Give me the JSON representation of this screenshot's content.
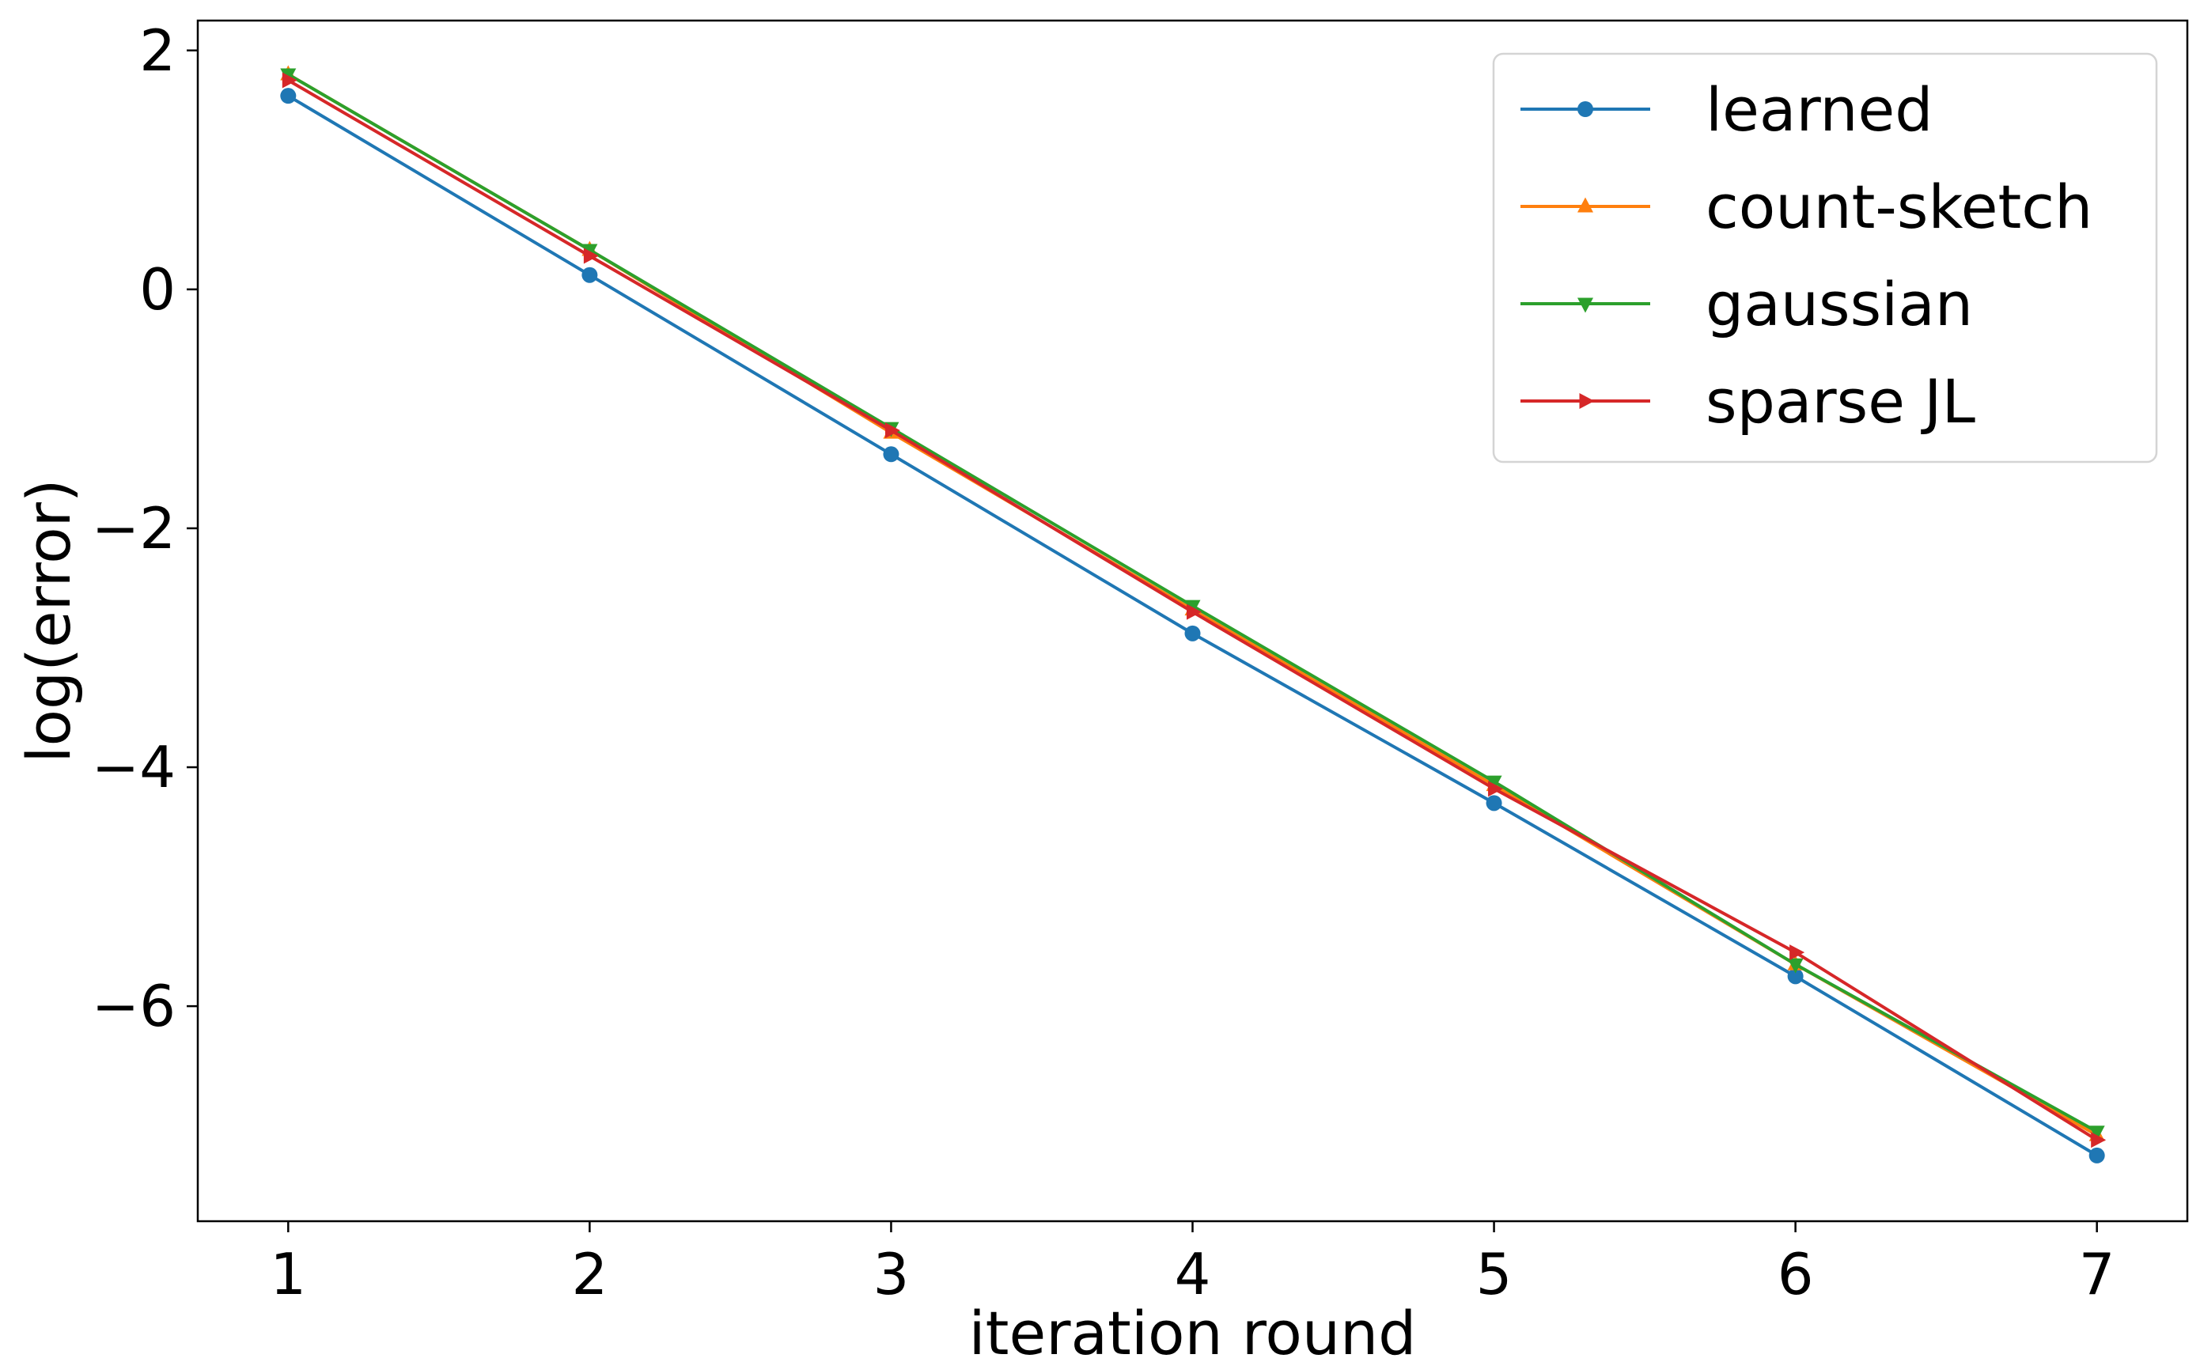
{
  "chart_data": {
    "type": "line",
    "xlabel": "iteration round",
    "ylabel": "log(error)",
    "xlim": [
      0.7,
      7.3
    ],
    "ylim": [
      -7.8,
      2.25
    ],
    "xticks": [
      1,
      2,
      3,
      4,
      5,
      6,
      7
    ],
    "yticks": [
      2,
      0,
      -2,
      -4,
      -6
    ],
    "ytick_labels": [
      "2",
      "0",
      "−2",
      "−4",
      "−6"
    ],
    "grid": false,
    "legend_position": "top-right",
    "x": [
      1,
      2,
      3,
      4,
      5,
      6,
      7
    ],
    "series": [
      {
        "name": "learned",
        "color": "#1f77b4",
        "marker": "circle",
        "values": [
          1.62,
          0.12,
          -1.38,
          -2.88,
          -4.3,
          -5.75,
          -7.25
        ]
      },
      {
        "name": "count-sketch",
        "color": "#ff7f0e",
        "marker": "triangle-up",
        "values": [
          1.8,
          0.33,
          -1.2,
          -2.68,
          -4.15,
          -5.65,
          -7.08
        ]
      },
      {
        "name": "gaussian",
        "color": "#2ca02c",
        "marker": "triangle-down",
        "values": [
          1.8,
          0.33,
          -1.16,
          -2.65,
          -4.12,
          -5.65,
          -7.05
        ]
      },
      {
        "name": "sparse JL",
        "color": "#d62728",
        "marker": "triangle-right",
        "values": [
          1.75,
          0.28,
          -1.18,
          -2.7,
          -4.18,
          -5.55,
          -7.12
        ]
      }
    ]
  }
}
